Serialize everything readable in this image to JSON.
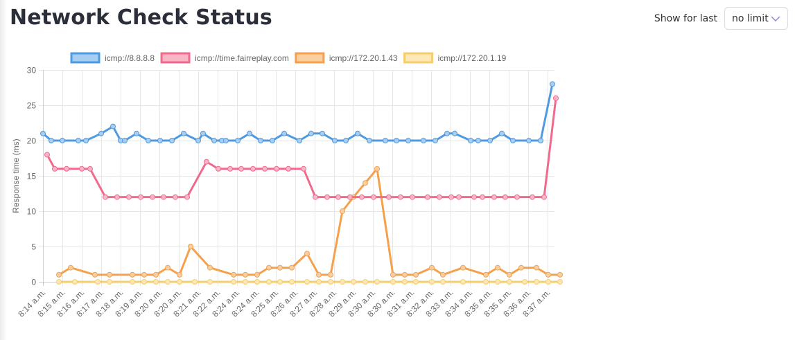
{
  "header": {
    "title": "Network Check Status",
    "filter_label": "Show for last",
    "filter_value": "no limit",
    "filter_icon": "chevron-down-icon"
  },
  "chart_data": {
    "type": "line",
    "title": "",
    "xlabel": "",
    "ylabel": "Response time (ms)",
    "ylim": [
      0,
      30
    ],
    "yticks": [
      0,
      5,
      10,
      15,
      20,
      25,
      30
    ],
    "grid": true,
    "legend_position": "top",
    "categories": [
      "8:14 a.m.",
      "8:15 a.m.",
      "8:16 a.m.",
      "8:17 a.m.",
      "8:18 a.m.",
      "8:19 a.m.",
      "8:20 a.m.",
      "8:20 a.m.",
      "8:21 a.m.",
      "8:22 a.m.",
      "8:24 a.m.",
      "8:24 a.m.",
      "8:25 a.m.",
      "8:26 a.m.",
      "8:27 a.m.",
      "8:28 a.m.",
      "8:29 a.m.",
      "8:30 a.m.",
      "8:30 a.m.",
      "8:31 a.m.",
      "8:32 a.m.",
      "8:33 a.m.",
      "8:34 a.m.",
      "8:35 a.m.",
      "8:35 a.m.",
      "8:36 a.m.",
      "8:37 a.m."
    ],
    "series": [
      {
        "name": "icmp://8.8.8.8",
        "color": "#4e9ae0",
        "fill": "#a8cdf2",
        "points": [
          [
            62,
            21
          ],
          [
            74,
            20
          ],
          [
            90,
            20
          ],
          [
            113,
            20
          ],
          [
            124,
            20
          ],
          [
            146,
            21
          ],
          [
            163,
            22
          ],
          [
            174,
            20
          ],
          [
            180,
            20
          ],
          [
            197,
            21
          ],
          [
            214,
            20
          ],
          [
            231,
            20
          ],
          [
            248,
            20
          ],
          [
            265,
            21
          ],
          [
            286,
            20
          ],
          [
            293,
            21
          ],
          [
            309,
            20
          ],
          [
            320,
            20
          ],
          [
            326,
            20
          ],
          [
            343,
            20
          ],
          [
            360,
            21
          ],
          [
            376,
            20
          ],
          [
            393,
            20
          ],
          [
            410,
            21
          ],
          [
            432,
            20
          ],
          [
            449,
            21
          ],
          [
            465,
            21
          ],
          [
            483,
            20
          ],
          [
            499,
            20
          ],
          [
            516,
            21
          ],
          [
            533,
            20
          ],
          [
            556,
            20
          ],
          [
            572,
            20
          ],
          [
            589,
            20
          ],
          [
            611,
            20
          ],
          [
            628,
            20
          ],
          [
            645,
            21
          ],
          [
            656,
            21
          ],
          [
            679,
            20
          ],
          [
            690,
            20
          ],
          [
            707,
            20
          ],
          [
            724,
            21
          ],
          [
            740,
            20
          ],
          [
            763,
            20
          ],
          [
            780,
            20
          ],
          [
            797,
            28
          ]
        ]
      },
      {
        "name": "icmp://time.fairreplay.com",
        "color": "#f06a8c",
        "fill": "#f9b6c6",
        "points": [
          [
            68,
            18
          ],
          [
            79,
            16
          ],
          [
            96,
            16
          ],
          [
            118,
            16
          ],
          [
            130,
            16
          ],
          [
            152,
            12
          ],
          [
            169,
            12
          ],
          [
            186,
            12
          ],
          [
            203,
            12
          ],
          [
            220,
            12
          ],
          [
            236,
            12
          ],
          [
            253,
            12
          ],
          [
            270,
            12
          ],
          [
            298,
            17
          ],
          [
            315,
            16
          ],
          [
            332,
            16
          ],
          [
            348,
            16
          ],
          [
            365,
            16
          ],
          [
            382,
            16
          ],
          [
            399,
            16
          ],
          [
            416,
            16
          ],
          [
            438,
            16
          ],
          [
            455,
            12
          ],
          [
            472,
            12
          ],
          [
            488,
            12
          ],
          [
            505,
            12
          ],
          [
            522,
            12
          ],
          [
            539,
            12
          ],
          [
            561,
            12
          ],
          [
            578,
            12
          ],
          [
            595,
            12
          ],
          [
            617,
            12
          ],
          [
            634,
            12
          ],
          [
            651,
            12
          ],
          [
            662,
            12
          ],
          [
            684,
            12
          ],
          [
            696,
            12
          ],
          [
            713,
            12
          ],
          [
            729,
            12
          ],
          [
            746,
            12
          ],
          [
            768,
            12
          ],
          [
            785,
            12
          ],
          [
            802,
            26
          ]
        ]
      },
      {
        "name": "icmp://172.20.1.43",
        "color": "#f5a04a",
        "fill": "#fbcfa2",
        "points": [
          [
            85,
            1
          ],
          [
            102,
            2
          ],
          [
            137,
            1
          ],
          [
            158,
            1
          ],
          [
            191,
            1
          ],
          [
            208,
            1
          ],
          [
            225,
            1
          ],
          [
            242,
            2
          ],
          [
            259,
            1
          ],
          [
            275,
            5
          ],
          [
            303,
            2
          ],
          [
            337,
            1
          ],
          [
            354,
            1
          ],
          [
            371,
            1
          ],
          [
            388,
            2
          ],
          [
            404,
            2
          ],
          [
            421,
            2
          ],
          [
            443,
            4
          ],
          [
            460,
            1
          ],
          [
            477,
            1
          ],
          [
            494,
            10
          ],
          [
            510,
            12
          ],
          [
            527,
            14
          ],
          [
            544,
            16
          ],
          [
            567,
            1
          ],
          [
            584,
            1
          ],
          [
            600,
            1
          ],
          [
            623,
            2
          ],
          [
            639,
            1
          ],
          [
            668,
            2
          ],
          [
            701,
            1
          ],
          [
            718,
            2
          ],
          [
            735,
            1
          ],
          [
            752,
            2
          ],
          [
            774,
            2
          ],
          [
            791,
            1
          ],
          [
            808,
            1
          ]
        ]
      },
      {
        "name": "icmp://172.20.1.19",
        "color": "#f6cd6e",
        "fill": "#fde8b6",
        "points": [
          [
            85,
            0
          ],
          [
            108,
            0
          ],
          [
            141,
            0
          ],
          [
            158,
            0
          ],
          [
            191,
            0
          ],
          [
            208,
            0
          ],
          [
            225,
            0
          ],
          [
            242,
            0
          ],
          [
            259,
            0
          ],
          [
            281,
            0
          ],
          [
            303,
            0
          ],
          [
            337,
            0
          ],
          [
            354,
            0
          ],
          [
            371,
            0
          ],
          [
            388,
            0
          ],
          [
            404,
            0
          ],
          [
            421,
            0
          ],
          [
            443,
            0
          ],
          [
            460,
            0
          ],
          [
            477,
            0
          ],
          [
            494,
            0
          ],
          [
            510,
            0
          ],
          [
            527,
            0
          ],
          [
            544,
            0
          ],
          [
            567,
            0
          ],
          [
            584,
            0
          ],
          [
            600,
            0
          ],
          [
            623,
            0
          ],
          [
            639,
            0
          ],
          [
            668,
            0
          ],
          [
            701,
            0
          ],
          [
            718,
            0
          ],
          [
            735,
            0
          ],
          [
            757,
            0
          ],
          [
            774,
            0
          ],
          [
            791,
            0
          ],
          [
            808,
            0
          ]
        ]
      }
    ]
  }
}
